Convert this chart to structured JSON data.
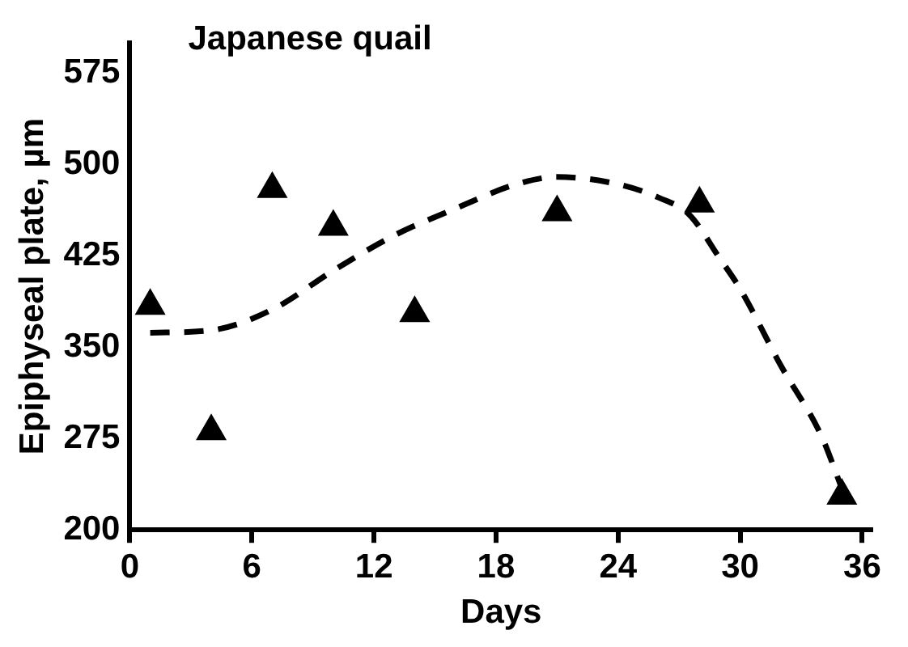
{
  "chart_data": {
    "type": "scatter",
    "title": "Japanese quail",
    "xlabel": "Days",
    "ylabel": "Epiphyseal plate, µm",
    "xlim": [
      0,
      36.5
    ],
    "xticks": [
      0,
      6,
      12,
      18,
      24,
      30,
      36
    ],
    "ylim": [
      200,
      600
    ],
    "yticks": [
      200,
      275,
      350,
      425,
      500,
      575
    ],
    "grid": false,
    "legend": false,
    "series": [
      {
        "type": "scatter",
        "color": "#000000",
        "marker": "triangle",
        "x": [
          1,
          4,
          7,
          10,
          14,
          21,
          28,
          35
        ],
        "values": [
          384,
          281,
          480,
          449,
          378,
          461,
          468,
          228
        ]
      },
      {
        "type": "line",
        "color": "#000000",
        "line_style": "dashed",
        "marker": "none",
        "x": [
          1,
          4,
          7,
          10,
          13,
          16,
          19,
          21,
          24,
          26,
          27.5,
          29,
          30,
          32,
          34,
          35
        ],
        "values": [
          362,
          364,
          381,
          413,
          442,
          464,
          484,
          490,
          484,
          473,
          459,
          423,
          398,
          335,
          277,
          234
        ]
      }
    ]
  }
}
